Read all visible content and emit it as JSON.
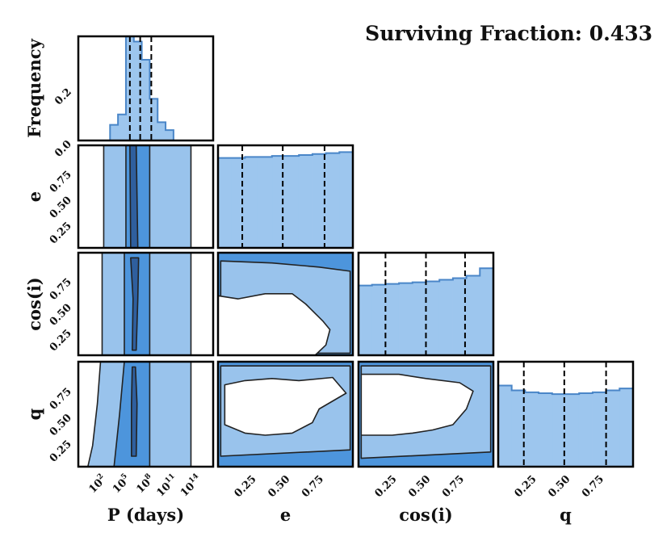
{
  "title": "Surviving Fraction: 0.433",
  "colors": {
    "light": "#99c3ec",
    "mid": "#4d95dc",
    "dark": "#2f5f9e",
    "edge": "#2b4f7a",
    "hist_fill": "#9dc6ee",
    "hist_edge": "#4a86c8",
    "frame": "#000000"
  },
  "chart_data": [
    {
      "id": "hist-P",
      "type": "bar",
      "title": "",
      "xlabel": "",
      "ylabel": "Frequency",
      "xlim": [
        -1,
        16
      ],
      "ylim": [
        0,
        0.4
      ],
      "yticks": [
        0.0,
        0.2
      ],
      "ytick_labels": [
        "0.0",
        "0.2"
      ],
      "bin_edges": [
        3,
        4,
        5,
        6,
        7,
        8,
        9,
        10,
        11
      ],
      "values": [
        0.06,
        0.1,
        0.4,
        0.38,
        0.31,
        0.16,
        0.07,
        0.04
      ],
      "quantiles": [
        5.5,
        6.8,
        8.2
      ]
    },
    {
      "id": "hist-e",
      "type": "bar",
      "xlim": [
        0,
        1
      ],
      "ylim": [
        0,
        1.06
      ],
      "bin_edges": [
        0.0,
        0.1,
        0.2,
        0.3,
        0.4,
        0.5,
        0.6,
        0.7,
        0.8,
        0.9,
        1.0
      ],
      "values": [
        0.93,
        0.93,
        0.94,
        0.94,
        0.95,
        0.95,
        0.96,
        0.97,
        0.98,
        0.99
      ],
      "quantiles": [
        0.18,
        0.48,
        0.79
      ]
    },
    {
      "id": "hist-cos-i",
      "type": "bar",
      "xlim": [
        0,
        1
      ],
      "ylim": [
        0,
        1.25
      ],
      "bin_edges": [
        0.0,
        0.1,
        0.2,
        0.3,
        0.4,
        0.5,
        0.6,
        0.7,
        0.8,
        0.9,
        1.0
      ],
      "values": [
        0.85,
        0.86,
        0.87,
        0.88,
        0.89,
        0.9,
        0.92,
        0.94,
        0.97,
        1.06
      ],
      "quantiles": [
        0.2,
        0.5,
        0.79
      ]
    },
    {
      "id": "hist-q",
      "type": "bar",
      "xlim": [
        0,
        1
      ],
      "ylim": [
        0,
        1.1
      ],
      "bin_edges": [
        0.0,
        0.1,
        0.2,
        0.3,
        0.4,
        0.5,
        0.6,
        0.7,
        0.8,
        0.9,
        1.0
      ],
      "values": [
        0.85,
        0.8,
        0.78,
        0.77,
        0.76,
        0.76,
        0.77,
        0.78,
        0.8,
        0.82
      ],
      "quantiles": [
        0.19,
        0.49,
        0.8
      ]
    },
    {
      "id": "contour-P-e",
      "type": "area",
      "xlabel": "",
      "ylabel": "e",
      "xlim": [
        -1,
        16
      ],
      "ylim": [
        0,
        1
      ],
      "yticks": [
        0.25,
        0.5,
        0.75
      ],
      "ytick_labels": [
        "0.25",
        "0.50",
        "0.75"
      ],
      "regions": [
        {
          "level": "light",
          "points": [
            [
              2.2,
              0
            ],
            [
              13.2,
              0
            ],
            [
              13.2,
              1
            ],
            [
              2.2,
              1
            ]
          ]
        },
        {
          "level": "mid",
          "points": [
            [
              5.0,
              0
            ],
            [
              8.0,
              0
            ],
            [
              8.0,
              1
            ],
            [
              5.0,
              1
            ]
          ]
        },
        {
          "level": "dark",
          "points": [
            [
              5.6,
              0
            ],
            [
              6.5,
              0
            ],
            [
              6.3,
              1
            ],
            [
              5.5,
              1
            ]
          ]
        }
      ]
    },
    {
      "id": "contour-P-cosi",
      "type": "area",
      "ylabel": "cos(i)",
      "xlim": [
        -1,
        16
      ],
      "ylim": [
        0,
        1
      ],
      "yticks": [
        0.25,
        0.5,
        0.75
      ],
      "ytick_labels": [
        "0.25",
        "0.50",
        "0.75"
      ],
      "regions": [
        {
          "level": "light",
          "points": [
            [
              2.0,
              0
            ],
            [
              13.2,
              0
            ],
            [
              13.2,
              1
            ],
            [
              2.0,
              1
            ]
          ]
        },
        {
          "level": "mid",
          "points": [
            [
              4.8,
              0
            ],
            [
              8.0,
              0
            ],
            [
              8.0,
              1
            ],
            [
              4.8,
              1
            ]
          ]
        },
        {
          "level": "dark",
          "points": [
            [
              5.8,
              0.05
            ],
            [
              6.3,
              0.05
            ],
            [
              6.5,
              0.55
            ],
            [
              6.6,
              0.95
            ],
            [
              5.6,
              0.95
            ],
            [
              5.9,
              0.55
            ]
          ]
        }
      ]
    },
    {
      "id": "contour-e-cosi",
      "type": "area",
      "xlim": [
        0,
        1
      ],
      "ylim": [
        0,
        1
      ],
      "regions": [
        {
          "level": "mid",
          "points": [
            [
              0,
              0
            ],
            [
              1,
              0
            ],
            [
              1,
              1
            ],
            [
              0,
              1
            ]
          ]
        },
        {
          "level": "light",
          "points": [
            [
              0.02,
              0.02
            ],
            [
              0.98,
              0.02
            ],
            [
              0.98,
              0.82
            ],
            [
              0.75,
              0.86
            ],
            [
              0.4,
              0.9
            ],
            [
              0.02,
              0.92
            ]
          ]
        },
        {
          "level": "white",
          "points": [
            [
              0.0,
              0.0
            ],
            [
              0.72,
              0.0
            ],
            [
              0.8,
              0.1
            ],
            [
              0.83,
              0.25
            ],
            [
              0.78,
              0.33
            ],
            [
              0.65,
              0.5
            ],
            [
              0.55,
              0.6
            ],
            [
              0.35,
              0.6
            ],
            [
              0.15,
              0.55
            ],
            [
              0.0,
              0.58
            ]
          ]
        }
      ]
    },
    {
      "id": "contour-P-q",
      "type": "area",
      "xlabel": "P (days)",
      "ylabel": "q",
      "xlim": [
        -1,
        16
      ],
      "ylim": [
        0,
        1
      ],
      "xticks": [
        2,
        5,
        8,
        11,
        14
      ],
      "xtick_labels": [
        "10^2",
        "10^5",
        "10^8",
        "10^11",
        "10^14"
      ],
      "yticks": [
        0.25,
        0.5,
        0.75
      ],
      "ytick_labels": [
        "0.25",
        "0.50",
        "0.75"
      ],
      "regions": [
        {
          "level": "light",
          "points": [
            [
              0.2,
              0
            ],
            [
              13.2,
              0
            ],
            [
              13.2,
              1
            ],
            [
              1.8,
              1
            ],
            [
              1.4,
              0.6
            ],
            [
              0.8,
              0.2
            ]
          ]
        },
        {
          "level": "mid",
          "points": [
            [
              3.5,
              0
            ],
            [
              8.0,
              0
            ],
            [
              8.0,
              1
            ],
            [
              4.8,
              1
            ],
            [
              4.2,
              0.5
            ]
          ]
        },
        {
          "level": "dark",
          "points": [
            [
              5.7,
              0.1
            ],
            [
              6.3,
              0.1
            ],
            [
              6.4,
              0.6
            ],
            [
              6.2,
              0.95
            ],
            [
              5.8,
              0.95
            ],
            [
              5.7,
              0.6
            ]
          ]
        }
      ]
    },
    {
      "id": "contour-e-q",
      "type": "area",
      "xlabel": "e",
      "xlim": [
        0,
        1
      ],
      "ylim": [
        0,
        1
      ],
      "xticks": [
        0.25,
        0.5,
        0.75
      ],
      "xtick_labels": [
        "0.25",
        "0.50",
        "0.75"
      ],
      "regions": [
        {
          "level": "mid",
          "points": [
            [
              0,
              0
            ],
            [
              1,
              0
            ],
            [
              1,
              1
            ],
            [
              0,
              1
            ]
          ]
        },
        {
          "level": "light",
          "points": [
            [
              0.02,
              0.1
            ],
            [
              0.98,
              0.16
            ],
            [
              0.98,
              0.96
            ],
            [
              0.02,
              0.96
            ]
          ]
        },
        {
          "level": "white",
          "points": [
            [
              0.05,
              0.4
            ],
            [
              0.2,
              0.32
            ],
            [
              0.35,
              0.3
            ],
            [
              0.55,
              0.32
            ],
            [
              0.7,
              0.42
            ],
            [
              0.75,
              0.55
            ],
            [
              0.95,
              0.7
            ],
            [
              0.85,
              0.85
            ],
            [
              0.6,
              0.82
            ],
            [
              0.4,
              0.84
            ],
            [
              0.2,
              0.82
            ],
            [
              0.05,
              0.78
            ]
          ]
        }
      ]
    },
    {
      "id": "contour-cosi-q",
      "type": "area",
      "xlabel": "cos(i)",
      "xlim": [
        0,
        1
      ],
      "ylim": [
        0,
        1
      ],
      "xticks": [
        0.25,
        0.5,
        0.75
      ],
      "xtick_labels": [
        "0.25",
        "0.50",
        "0.75"
      ],
      "regions": [
        {
          "level": "mid",
          "points": [
            [
              0,
              0
            ],
            [
              1,
              0
            ],
            [
              1,
              1
            ],
            [
              0,
              1
            ]
          ]
        },
        {
          "level": "light",
          "points": [
            [
              0.02,
              0.08
            ],
            [
              0.98,
              0.14
            ],
            [
              0.98,
              0.96
            ],
            [
              0.02,
              0.96
            ]
          ]
        },
        {
          "level": "white",
          "points": [
            [
              0.02,
              0.3
            ],
            [
              0.25,
              0.3
            ],
            [
              0.4,
              0.32
            ],
            [
              0.55,
              0.35
            ],
            [
              0.7,
              0.4
            ],
            [
              0.8,
              0.55
            ],
            [
              0.85,
              0.72
            ],
            [
              0.75,
              0.8
            ],
            [
              0.5,
              0.84
            ],
            [
              0.3,
              0.88
            ],
            [
              0.02,
              0.88
            ]
          ]
        }
      ]
    },
    {
      "id": "hist-q-axis",
      "type": "bar",
      "xlabel": "q",
      "xlim": [
        0,
        1
      ],
      "xticks": [
        0.25,
        0.5,
        0.75
      ],
      "xtick_labels": [
        "0.25",
        "0.50",
        "0.75"
      ]
    }
  ]
}
